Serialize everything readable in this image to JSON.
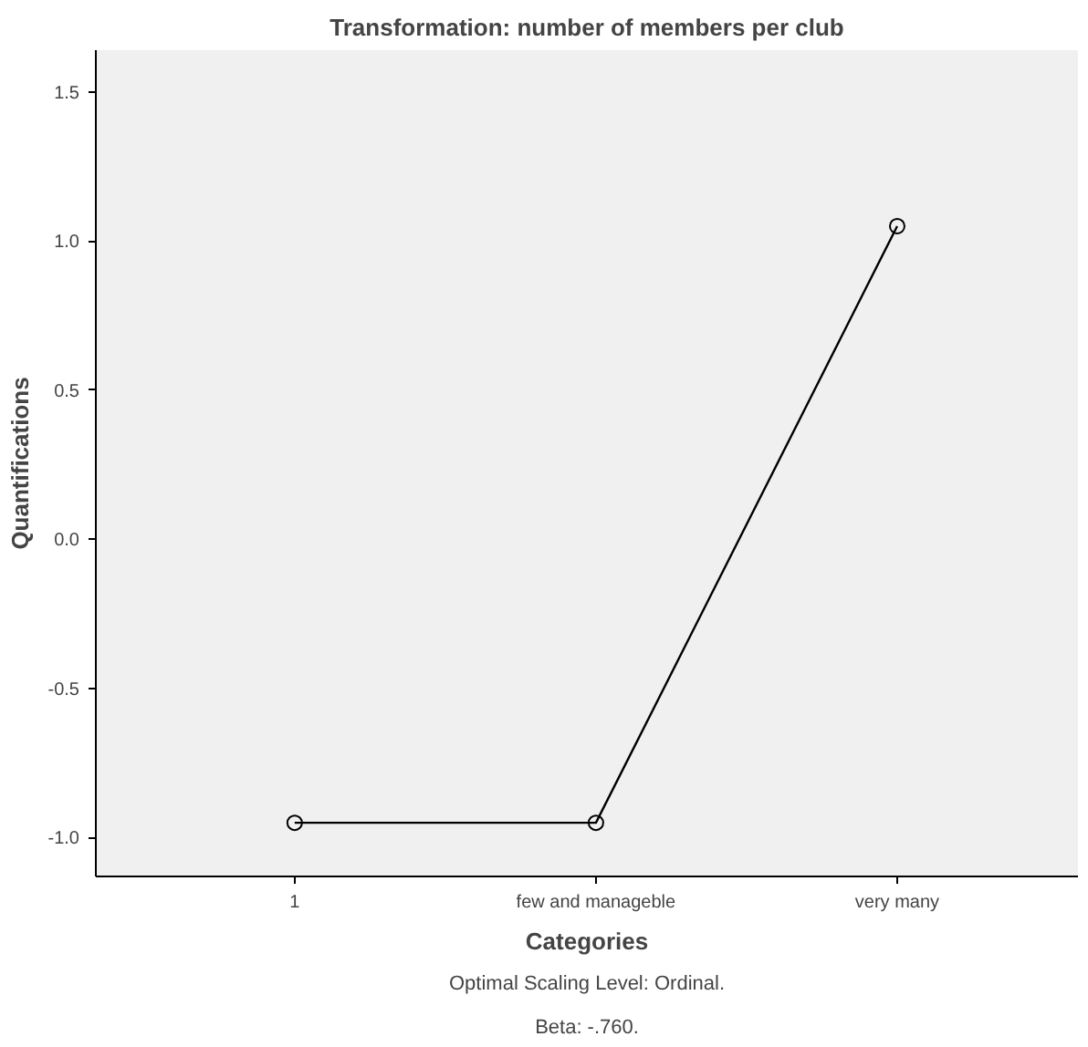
{
  "chart_data": {
    "type": "line",
    "title": "Transformation: number of members per club",
    "xlabel": "Categories",
    "ylabel": "Quantifications",
    "categories": [
      "1",
      "few and manageble",
      "very many"
    ],
    "values": [
      -0.95,
      -0.95,
      1.05
    ],
    "color": "#000000",
    "marker": "circle",
    "grid": false,
    "ylim": [
      -1.13,
      1.64
    ],
    "yticks": [
      {
        "value": -1.0,
        "label": "-1.0"
      },
      {
        "value": -0.5,
        "label": "-0.5"
      },
      {
        "value": 0,
        "label": "0.0"
      },
      {
        "value": 0.5,
        "label": "0.5"
      },
      {
        "value": 1.0,
        "label": "1.0"
      },
      {
        "value": 1.5,
        "label": "1.5"
      }
    ],
    "annotations": [
      "Optimal Scaling Level: Ordinal.",
      "Beta: -.760."
    ]
  }
}
